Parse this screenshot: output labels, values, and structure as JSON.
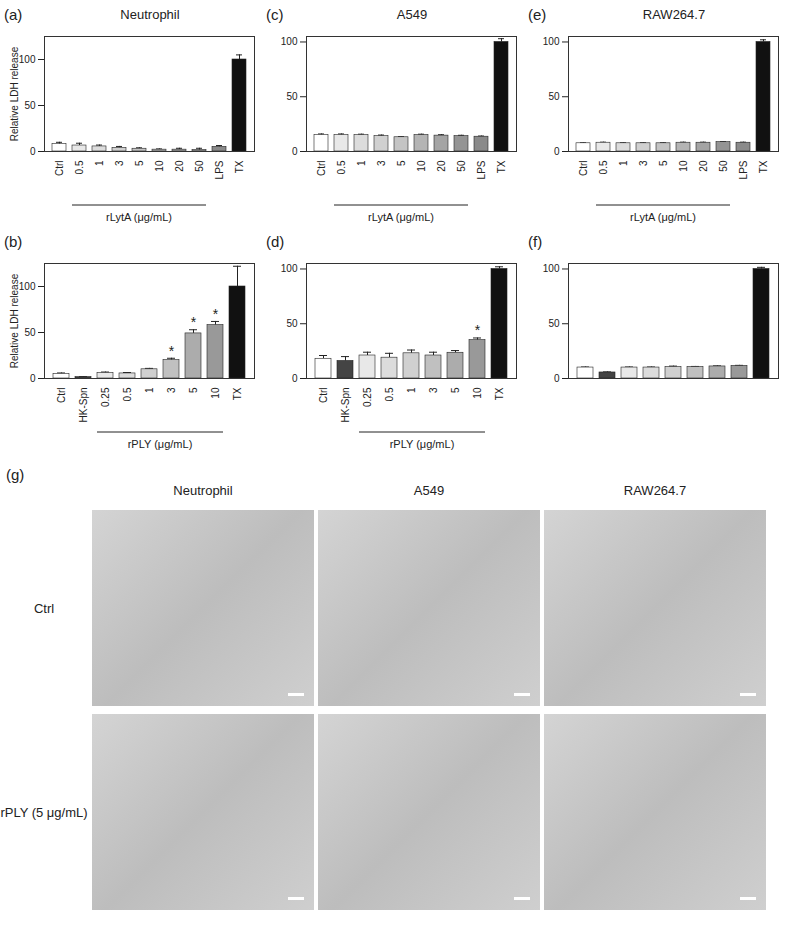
{
  "chart_data": [
    {
      "type": "bar",
      "panel": "(a)",
      "title": "Neutrophil",
      "y_label": "Relative LDH release",
      "categories": [
        "Ctrl",
        "0.5",
        "1",
        "3",
        "5",
        "10",
        "20",
        "50",
        "LPS",
        "TX"
      ],
      "values": [
        8,
        6.5,
        5.5,
        4,
        3,
        2,
        2,
        1.5,
        5,
        100
      ],
      "errors": [
        2,
        2.5,
        1.5,
        1.5,
        1,
        0.8,
        1.5,
        2,
        1.5,
        5
      ],
      "colors": [
        "#ffffff",
        "#e8e8e8",
        "#dcdcdc",
        "#d0d0d0",
        "#c4c4c4",
        "#b4b4b4",
        "#a4a4a4",
        "#949494",
        "#8a8a8a",
        "#111111"
      ],
      "ylim": [
        0,
        125
      ],
      "yticks": [
        0,
        50,
        100
      ],
      "group_label": {
        "text": "rLytA (μg/mL)",
        "from": "0.5",
        "to": "50"
      }
    },
    {
      "type": "bar",
      "panel": "(c)",
      "title": "A549",
      "categories": [
        "Ctrl",
        "0.5",
        "1",
        "3",
        "5",
        "10",
        "20",
        "50",
        "LPS",
        "TX"
      ],
      "values": [
        15,
        15,
        15,
        14,
        13,
        15,
        14.5,
        14,
        13.5,
        100
      ],
      "errors": [
        1,
        1,
        0.8,
        1,
        0.6,
        0.8,
        0.8,
        0.8,
        0.6,
        3
      ],
      "colors": [
        "#ffffff",
        "#e8e8e8",
        "#dcdcdc",
        "#d0d0d0",
        "#c4c4c4",
        "#b4b4b4",
        "#a4a4a4",
        "#949494",
        "#8a8a8a",
        "#111111"
      ],
      "ylim": [
        0,
        105
      ],
      "yticks": [
        0,
        50,
        100
      ],
      "group_label": {
        "text": "rLytA (μg/mL)",
        "from": "0.5",
        "to": "50"
      }
    },
    {
      "type": "bar",
      "panel": "(e)",
      "title": "RAW264.7",
      "categories": [
        "Ctrl",
        "0.5",
        "1",
        "3",
        "5",
        "10",
        "20",
        "50",
        "LPS",
        "TX"
      ],
      "values": [
        7.5,
        8,
        7.5,
        7.5,
        7.5,
        8,
        8,
        8.5,
        8,
        100
      ],
      "errors": [
        0.5,
        0.5,
        0.5,
        0.5,
        0.5,
        0.5,
        0.5,
        0.5,
        0.5,
        2
      ],
      "colors": [
        "#ffffff",
        "#e8e8e8",
        "#dcdcdc",
        "#d0d0d0",
        "#c4c4c4",
        "#b4b4b4",
        "#a4a4a4",
        "#949494",
        "#8a8a8a",
        "#111111"
      ],
      "ylim": [
        0,
        105
      ],
      "yticks": [
        0,
        50,
        100
      ],
      "group_label": {
        "text": "rLytA (μg/mL)",
        "from": "0.5",
        "to": "50"
      }
    },
    {
      "type": "bar",
      "panel": "(b)",
      "y_label": "Relative LDH release",
      "categories": [
        "Ctrl",
        "HK-Spn",
        "0.25",
        "0.5",
        "1",
        "3",
        "5",
        "10",
        "TX"
      ],
      "values": [
        5,
        1.5,
        6,
        5.5,
        10,
        20,
        49,
        58,
        100
      ],
      "errors": [
        1,
        0.5,
        1,
        1,
        1,
        2,
        4,
        4,
        22
      ],
      "colors": [
        "#ffffff",
        "#444444",
        "#e8e8e8",
        "#dcdcdc",
        "#d0d0d0",
        "#c0c0c0",
        "#acacac",
        "#999999",
        "#111111"
      ],
      "ylim": [
        0,
        125
      ],
      "yticks": [
        0,
        50,
        100
      ],
      "annotations": [
        {
          "text": "*",
          "category": "3"
        },
        {
          "text": "*",
          "category": "5"
        },
        {
          "text": "*",
          "category": "10"
        }
      ],
      "group_label": {
        "text": "rPLY (μg/mL)",
        "from": "0.25",
        "to": "10"
      }
    },
    {
      "type": "bar",
      "panel": "(d)",
      "categories": [
        "Ctrl",
        "HK-Spn",
        "0.25",
        "0.5",
        "1",
        "3",
        "5",
        "10",
        "TX"
      ],
      "values": [
        18,
        16,
        21,
        19,
        23,
        21,
        23.5,
        35,
        100
      ],
      "errors": [
        3,
        4,
        3,
        4,
        3,
        3,
        2,
        2,
        2
      ],
      "colors": [
        "#ffffff",
        "#444444",
        "#e8e8e8",
        "#dcdcdc",
        "#d0d0d0",
        "#c0c0c0",
        "#acacac",
        "#999999",
        "#111111"
      ],
      "ylim": [
        0,
        105
      ],
      "yticks": [
        0,
        50,
        100
      ],
      "annotations": [
        {
          "text": "*",
          "category": "10"
        }
      ],
      "group_label": {
        "text": "rPLY (μg/mL)",
        "from": "0.25",
        "to": "10"
      }
    },
    {
      "type": "bar",
      "panel": "(f)",
      "tick_labels": "y",
      "categories": [
        null,
        null,
        null,
        null,
        null,
        null,
        null,
        null,
        null
      ],
      "values": [
        10,
        5.5,
        10,
        10,
        10.5,
        10.5,
        11,
        11.5,
        100
      ],
      "errors": [
        0.5,
        0.5,
        0.5,
        0.5,
        0.8,
        0.5,
        0.5,
        0.5,
        1.5
      ],
      "colors": [
        "#ffffff",
        "#444444",
        "#e8e8e8",
        "#dcdcdc",
        "#d0d0d0",
        "#c0c0c0",
        "#acacac",
        "#999999",
        "#111111"
      ],
      "ylim": [
        0,
        105
      ],
      "yticks": [
        0,
        50,
        100
      ]
    }
  ],
  "micrographs": {
    "panel": "(g)",
    "columns": [
      "Neutrophil",
      "A549",
      "RAW264.7"
    ],
    "rows": [
      "Ctrl",
      "rPLY (5 μg/mL)"
    ]
  }
}
